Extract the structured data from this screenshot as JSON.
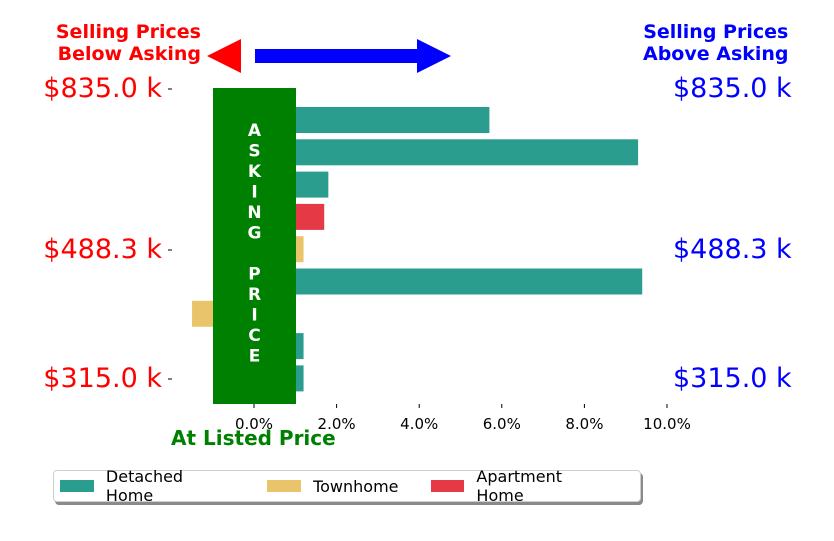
{
  "chart_data": {
    "type": "bar",
    "orientation": "horizontal",
    "header_left": [
      "Selling Prices",
      "Below Asking"
    ],
    "header_right": [
      "Selling Prices",
      "Above Asking"
    ],
    "center_band_label": "ASKING PRICE",
    "center_band_letters": [
      "A",
      "S",
      "K",
      "I",
      "N",
      "G",
      "",
      "P",
      "R",
      "I",
      "C",
      "E"
    ],
    "xlabel": "At Listed Price",
    "x_ticks": [
      "0.0%",
      "2.0%",
      "4.0%",
      "6.0%",
      "8.0%",
      "10.0%"
    ],
    "x_tick_values": [
      0,
      2,
      4,
      6,
      8,
      10
    ],
    "xlim": [
      -2.0,
      10.5
    ],
    "y_tick_labels": [
      {
        "label": "$835.0 k",
        "row": 0
      },
      {
        "label": "$488.3 k",
        "row": 5
      },
      {
        "label": "$315.0 k",
        "row": 9
      }
    ],
    "rows": [
      {
        "type": "Detached Home",
        "value": 5.7
      },
      {
        "type": "Detached Home",
        "value": 9.3
      },
      {
        "type": "Detached Home",
        "value": 1.8
      },
      {
        "type": "Apartment Home",
        "value": 1.7
      },
      {
        "type": "Townhome",
        "value": 1.2
      },
      {
        "type": "Detached Home",
        "value": 9.4
      },
      {
        "type": "Townhome",
        "value": -1.5
      },
      {
        "type": "Detached Home",
        "value": 1.2
      },
      {
        "type": "Detached Home",
        "value": 1.2
      }
    ],
    "legend": [
      {
        "name": "Detached Home",
        "color": "#2a9d8f"
      },
      {
        "name": "Townhome",
        "color": "#e9c46a"
      },
      {
        "name": "Apartment Home",
        "color": "#e63946"
      }
    ],
    "colors": {
      "center_band": "#008000",
      "below_asking": "#ff0000",
      "above_asking": "#0000ff",
      "listed_label": "#008000"
    }
  }
}
